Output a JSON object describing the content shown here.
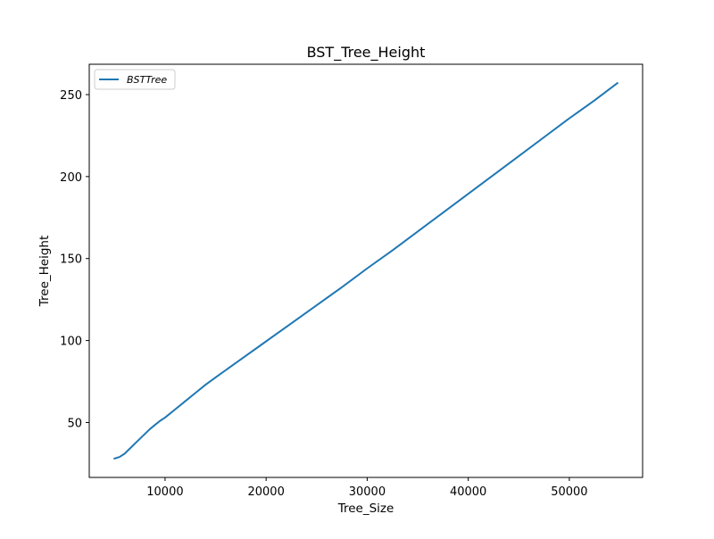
{
  "chart_data": {
    "type": "line",
    "title": "BST_Tree_Height",
    "xlabel": "Tree_Size",
    "ylabel": "Tree_Height",
    "xlim": [
      2500,
      57250
    ],
    "ylim": [
      16.5,
      268.5
    ],
    "xticks": [
      10000,
      20000,
      30000,
      40000,
      50000
    ],
    "xtick_labels": [
      "10000",
      "20000",
      "30000",
      "40000",
      "50000"
    ],
    "yticks": [
      50,
      100,
      150,
      200,
      250
    ],
    "ytick_labels": [
      "50",
      "100",
      "150",
      "200",
      "250"
    ],
    "grid": false,
    "legend_position": "top-left",
    "series": [
      {
        "name": "BSTTree",
        "color": "#1f77b4",
        "x": [
          5000,
          5500,
          6000,
          6500,
          7000,
          7500,
          8000,
          8500,
          9000,
          9500,
          10000,
          11000,
          12000,
          13000,
          14000,
          15000,
          17500,
          20000,
          22500,
          25000,
          27500,
          30000,
          32500,
          35000,
          37500,
          40000,
          42500,
          45000,
          47500,
          50000,
          52500,
          54750
        ],
        "y": [
          28,
          29,
          31,
          34,
          37,
          40,
          43,
          46,
          48.5,
          51,
          53,
          58,
          63,
          68,
          73,
          77.5,
          88.5,
          99.5,
          110.5,
          121.5,
          132.5,
          144,
          155,
          166.5,
          178,
          189.5,
          201,
          212.5,
          224,
          235.5,
          246.5,
          257
        ]
      }
    ]
  }
}
